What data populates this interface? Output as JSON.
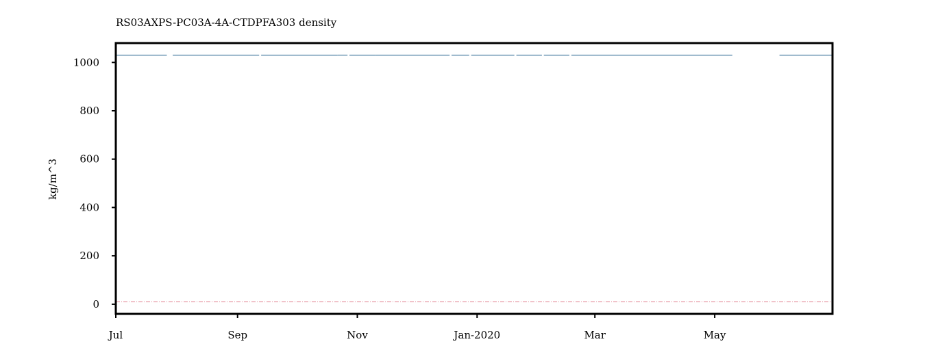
{
  "chart_data": {
    "type": "line",
    "title": "RS03AXPS-PC03A-4A-CTDPFA303 density",
    "ylabel": "kg/m^3",
    "xlabel": "",
    "ylim": [
      -40,
      1080
    ],
    "xlim": [
      "2019-07-01",
      "2020-06-30"
    ],
    "grid": false,
    "y_ticks": [
      {
        "value": 0,
        "label": "0"
      },
      {
        "value": 200,
        "label": "200"
      },
      {
        "value": 400,
        "label": "400"
      },
      {
        "value": 600,
        "label": "600"
      },
      {
        "value": 800,
        "label": "800"
      },
      {
        "value": 1000,
        "label": "1000"
      }
    ],
    "x_ticks": [
      {
        "date": "2019-07-01",
        "label": "Jul"
      },
      {
        "date": "2019-09-01",
        "label": "Sep"
      },
      {
        "date": "2019-11-01",
        "label": "Nov"
      },
      {
        "date": "2020-01-01",
        "label": "Jan-2020"
      },
      {
        "date": "2020-03-01",
        "label": "Mar"
      },
      {
        "date": "2020-05-01",
        "label": "May"
      }
    ],
    "series": [
      {
        "color": "#1f5f8b",
        "style": "solid",
        "value": 1030,
        "segments": [
          [
            "2019-07-01",
            "2019-07-27"
          ],
          [
            "2019-07-30",
            "2019-09-12"
          ],
          [
            "2019-09-13",
            "2019-10-22"
          ],
          [
            "2019-10-22",
            "2019-10-27"
          ],
          [
            "2019-10-28",
            "2019-11-10"
          ],
          [
            "2019-11-10",
            "2019-12-18"
          ],
          [
            "2019-12-19",
            "2019-12-28"
          ],
          [
            "2019-12-29",
            "2020-01-20"
          ],
          [
            "2020-01-21",
            "2020-02-03"
          ],
          [
            "2020-02-04",
            "2020-02-17"
          ],
          [
            "2020-02-18",
            "2020-05-10"
          ],
          [
            "2020-06-03",
            "2020-06-30"
          ]
        ]
      },
      {
        "color": "#e07b8a",
        "style": "dashdot",
        "value": 10,
        "segments": [
          [
            "2019-07-01",
            "2020-06-30"
          ]
        ]
      }
    ]
  }
}
